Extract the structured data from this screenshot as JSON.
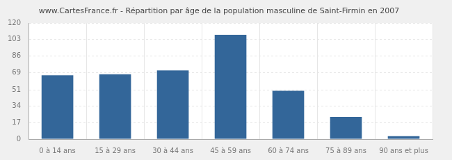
{
  "chart_data": {
    "type": "bar",
    "title": "www.CartesFrance.fr - Répartition par âge de la population masculine de Saint-Firmin en 2007",
    "categories": [
      "0 à 14 ans",
      "15 à 29 ans",
      "30 à 44 ans",
      "45 à 59 ans",
      "60 à 74 ans",
      "75 à 89 ans",
      "90 ans et plus"
    ],
    "values": [
      66,
      67,
      71,
      108,
      50,
      23,
      3
    ],
    "color": "#336699",
    "ylim": [
      0,
      120
    ],
    "yticks": [
      0,
      17,
      34,
      51,
      69,
      86,
      103,
      120
    ],
    "grid": true
  }
}
